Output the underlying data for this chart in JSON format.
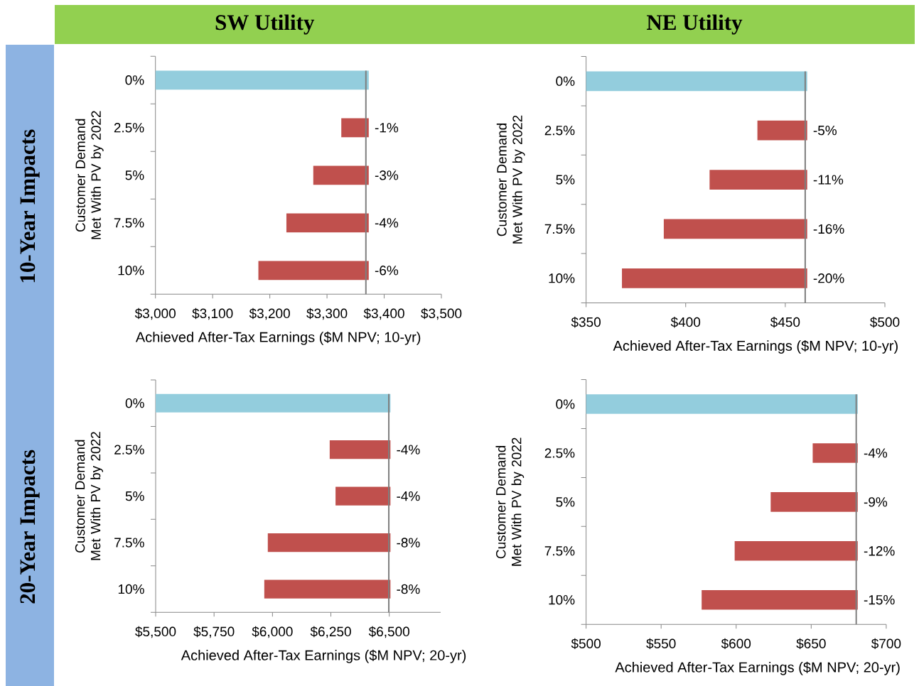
{
  "chart_data": [
    {
      "type": "bar",
      "orientation": "horizontal",
      "title": "SW Utility",
      "annotations": [
        "10-Year Impacts",
        {
          "text": "-1%",
          "x": 3373,
          "y": "2.5%"
        },
        {
          "text": "-3%",
          "x": 3373,
          "y": "5%"
        },
        {
          "text": "-4%",
          "x": 3373,
          "y": "7.5%"
        },
        {
          "text": "-6%",
          "x": 3373,
          "y": "10%"
        }
      ],
      "xlabel": "Achieved After-Tax Earnings ($M NPV; 10-yr)",
      "ylabel": "Customer Demand Met With PV by 2022",
      "categories": [
        "0%",
        "2.5%",
        "5%",
        "7.5%",
        "10%"
      ],
      "values": [
        3373,
        -48,
        -97,
        -144,
        -193
      ],
      "base": [
        null,
        3373,
        3373,
        3373,
        3373
      ],
      "colors": [
        "#93cddd",
        "#c0504d",
        "#c0504d",
        "#c0504d",
        "#c0504d"
      ],
      "xlim": [
        3000,
        3500
      ],
      "xticks": [
        {
          "value": 3000,
          "label": "$3,000"
        },
        {
          "value": 3100,
          "label": "$3,100"
        },
        {
          "value": 3200,
          "label": "$3,200"
        },
        {
          "value": 3300,
          "label": "$3,300"
        },
        {
          "value": 3400,
          "label": "$3,400"
        },
        {
          "value": 3500,
          "label": "$3,500"
        }
      ],
      "ref_lines": [
        {
          "axis": "x",
          "value": 3368,
          "color": "#7f7f7f"
        }
      ]
    },
    {
      "type": "bar",
      "orientation": "horizontal",
      "title": "NE Utility",
      "annotations": [
        {
          "text": "-5%",
          "x": 461,
          "y": "2.5%"
        },
        {
          "text": "-11%",
          "x": 461,
          "y": "5%"
        },
        {
          "text": "-16%",
          "x": 461,
          "y": "7.5%"
        },
        {
          "text": "-20%",
          "x": 461,
          "y": "10%"
        }
      ],
      "xlabel": "Achieved After-Tax Earnings ($M NPV; 10-yr)",
      "ylabel": "Customer Demand Met With PV by 2022",
      "categories": [
        "0%",
        "2.5%",
        "5%",
        "7.5%",
        "10%"
      ],
      "values": [
        461,
        -25,
        -49,
        -72,
        -93
      ],
      "base": [
        null,
        461,
        461,
        461,
        461
      ],
      "colors": [
        "#93cddd",
        "#c0504d",
        "#c0504d",
        "#c0504d",
        "#c0504d"
      ],
      "xlim": [
        350,
        500
      ],
      "xticks": [
        {
          "value": 350,
          "label": "$350"
        },
        {
          "value": 400,
          "label": "$400"
        },
        {
          "value": 450,
          "label": "$450"
        },
        {
          "value": 500,
          "label": "$500"
        }
      ],
      "ref_lines": [
        {
          "axis": "x",
          "value": 460,
          "color": "#7f7f7f"
        }
      ]
    },
    {
      "type": "bar",
      "orientation": "horizontal",
      "annotations": [
        "20-Year Impacts",
        {
          "text": "-4%",
          "x": 6505,
          "y": "2.5%"
        },
        {
          "text": "-4%",
          "x": 6505,
          "y": "5%"
        },
        {
          "text": "-8%",
          "x": 6505,
          "y": "7.5%"
        },
        {
          "text": "-8%",
          "x": 6505,
          "y": "10%"
        }
      ],
      "xlabel": "Achieved After-Tax Earnings ($M NPV; 20-yr)",
      "ylabel": "Customer Demand Met With PV by 2022",
      "categories": [
        "0%",
        "2.5%",
        "5%",
        "7.5%",
        "10%"
      ],
      "values": [
        6505,
        -260,
        -235,
        -525,
        -540
      ],
      "base": [
        null,
        6505,
        6505,
        6505,
        6505
      ],
      "colors": [
        "#93cddd",
        "#c0504d",
        "#c0504d",
        "#c0504d",
        "#c0504d"
      ],
      "xlim": [
        5500,
        6720
      ],
      "xticks": [
        {
          "value": 5500,
          "label": "$5,500"
        },
        {
          "value": 5750,
          "label": "$5,750"
        },
        {
          "value": 6000,
          "label": "$6,000"
        },
        {
          "value": 6250,
          "label": "$6,250"
        },
        {
          "value": 6500,
          "label": "$6,500"
        }
      ],
      "ref_lines": [
        {
          "axis": "x",
          "value": 6498,
          "color": "#7f7f7f"
        }
      ]
    },
    {
      "type": "bar",
      "orientation": "horizontal",
      "annotations": [
        {
          "text": "-4%",
          "x": 681,
          "y": "2.5%"
        },
        {
          "text": "-9%",
          "x": 681,
          "y": "5%"
        },
        {
          "text": "-12%",
          "x": 681,
          "y": "7.5%"
        },
        {
          "text": "-15%",
          "x": 681,
          "y": "10%"
        }
      ],
      "xlabel": "Achieved After-Tax Earnings ($M NPV; 20-yr)",
      "ylabel": "Customer Demand Met With PV by 2022",
      "categories": [
        "0%",
        "2.5%",
        "5%",
        "7.5%",
        "10%"
      ],
      "values": [
        681,
        -30,
        -58,
        -82,
        -104
      ],
      "base": [
        null,
        681,
        681,
        681,
        681
      ],
      "colors": [
        "#93cddd",
        "#c0504d",
        "#c0504d",
        "#c0504d",
        "#c0504d"
      ],
      "xlim": [
        500,
        700
      ],
      "xticks": [
        {
          "value": 500,
          "label": "$500"
        },
        {
          "value": 550,
          "label": "$550"
        },
        {
          "value": 600,
          "label": "$600"
        },
        {
          "value": 650,
          "label": "$650"
        },
        {
          "value": 700,
          "label": "$700"
        }
      ],
      "ref_lines": [
        {
          "axis": "x",
          "value": 680,
          "color": "#7f7f7f"
        }
      ]
    }
  ]
}
